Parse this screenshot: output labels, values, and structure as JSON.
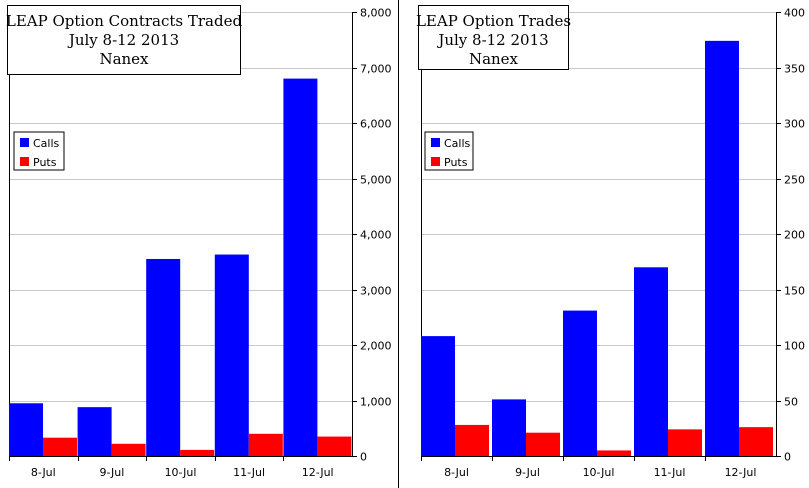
{
  "chart_data": [
    {
      "type": "bar",
      "title": [
        "LEAP Option Contracts Traded",
        "July 8-12 2013",
        "Nanex"
      ],
      "categories": [
        "8-Jul",
        "9-Jul",
        "10-Jul",
        "11-Jul",
        "12-Jul"
      ],
      "series": [
        {
          "name": "Calls",
          "color": "#0000ff",
          "values": [
            950,
            880,
            3550,
            3630,
            6800
          ]
        },
        {
          "name": "Puts",
          "color": "#ff0000",
          "values": [
            330,
            220,
            110,
            400,
            350
          ]
        }
      ],
      "ylim": [
        0,
        8000
      ],
      "yticks": [
        0,
        1000,
        2000,
        3000,
        4000,
        5000,
        6000,
        7000,
        8000
      ],
      "ytick_labels": [
        "0",
        "1,000",
        "2,000",
        "3,000",
        "4,000",
        "5,000",
        "6,000",
        "7,000",
        "8,000"
      ],
      "y_axis_side": "right",
      "grid": true,
      "legend_position": "left"
    },
    {
      "type": "bar",
      "title": [
        "LEAP Option Trades",
        "July 8-12 2013",
        "Nanex"
      ],
      "categories": [
        "8-Jul",
        "9-Jul",
        "10-Jul",
        "11-Jul",
        "12-Jul"
      ],
      "series": [
        {
          "name": "Calls",
          "color": "#0000ff",
          "values": [
            108,
            51,
            131,
            170,
            374
          ]
        },
        {
          "name": "Puts",
          "color": "#ff0000",
          "values": [
            28,
            21,
            5,
            24,
            26
          ]
        }
      ],
      "ylim": [
        0,
        400
      ],
      "yticks": [
        0,
        50,
        100,
        150,
        200,
        250,
        300,
        350,
        400
      ],
      "ytick_labels": [
        "0",
        "50",
        "100",
        "150",
        "200",
        "250",
        "300",
        "350",
        "400"
      ],
      "y_axis_side": "right",
      "grid": true,
      "legend_position": "left"
    }
  ]
}
